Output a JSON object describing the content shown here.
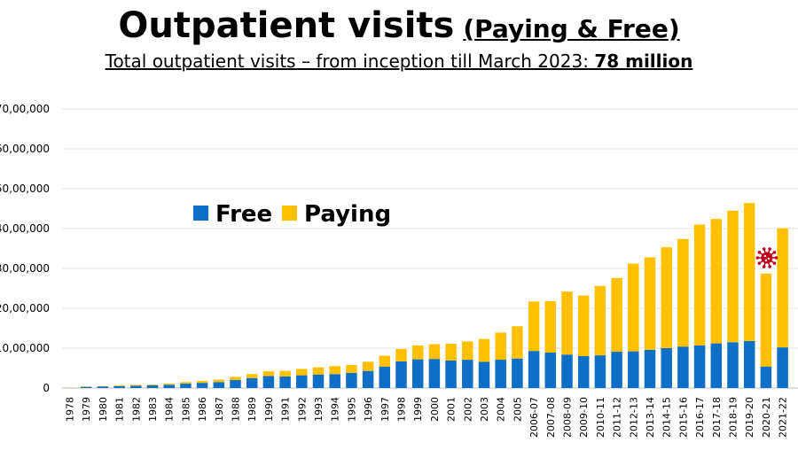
{
  "title": {
    "main": "Outpatient visits",
    "paren_open": "(",
    "paren_text": "Paying & Free",
    "paren_close": ")",
    "subtitle_prefix": "Total outpatient visits – from inception till March 2023:",
    "subtitle_value": "78 million"
  },
  "colors": {
    "free": "#0f6fc6",
    "paying": "#ffc000",
    "grid": "#e6e6e6",
    "virus": "#c0001a"
  },
  "icons": {
    "annotation": "virus-icon"
  },
  "chart_data": {
    "type": "bar",
    "stacked": true,
    "categories": [
      "1978",
      "1979",
      "1980",
      "1981",
      "1982",
      "1983",
      "1984",
      "1985",
      "1986",
      "1987",
      "1988",
      "1989",
      "1990",
      "1991",
      "1992",
      "1993",
      "1994",
      "1995",
      "1996",
      "1997",
      "1998",
      "1999",
      "2000",
      "2001",
      "2002",
      "2003",
      "2004",
      "2005",
      "2006-07",
      "2007-08",
      "2008-09",
      "2009-10",
      "2010-11",
      "2011-12",
      "2012-13",
      "2013-14",
      "2014-15",
      "2015-16",
      "2016-17",
      "2017-18",
      "2018-19",
      "2019-20",
      "2020-21",
      "2021-22"
    ],
    "series": [
      {
        "name": "Free",
        "values": [
          5000,
          30000,
          40000,
          50000,
          60000,
          70000,
          80000,
          110000,
          130000,
          150000,
          200000,
          250000,
          300000,
          290000,
          320000,
          340000,
          350000,
          380000,
          430000,
          540000,
          670000,
          720000,
          730000,
          690000,
          710000,
          660000,
          710000,
          740000,
          930000,
          890000,
          840000,
          800000,
          820000,
          910000,
          920000,
          960000,
          1000000,
          1040000,
          1070000,
          1120000,
          1150000,
          1180000,
          540000,
          1020000
        ]
      },
      {
        "name": "Paying",
        "values": [
          5000,
          10000,
          10000,
          20000,
          20000,
          20000,
          30000,
          40000,
          50000,
          60000,
          80000,
          100000,
          120000,
          140000,
          160000,
          180000,
          200000,
          200000,
          230000,
          270000,
          310000,
          350000,
          370000,
          420000,
          460000,
          570000,
          680000,
          810000,
          1240000,
          1290000,
          1580000,
          1520000,
          1740000,
          1850000,
          2200000,
          2320000,
          2530000,
          2700000,
          3030000,
          3120000,
          3300000,
          3460000,
          2330000,
          2990000
        ]
      }
    ],
    "ylim": [
      0,
      7000000
    ],
    "y_ticks": [
      0,
      1000000,
      2000000,
      3000000,
      4000000,
      5000000,
      6000000,
      7000000
    ],
    "y_tick_labels": [
      "0",
      "10,00,000",
      "20,00,000",
      "30,00,000",
      "40,00,000",
      "50,00,000",
      "60,00,000",
      "70,00,000"
    ],
    "legend": {
      "position": "upper-left",
      "entries": [
        "Free",
        "Paying"
      ]
    },
    "grid": true,
    "annotation": {
      "type": "virus-icon",
      "category": "2020-21"
    }
  }
}
